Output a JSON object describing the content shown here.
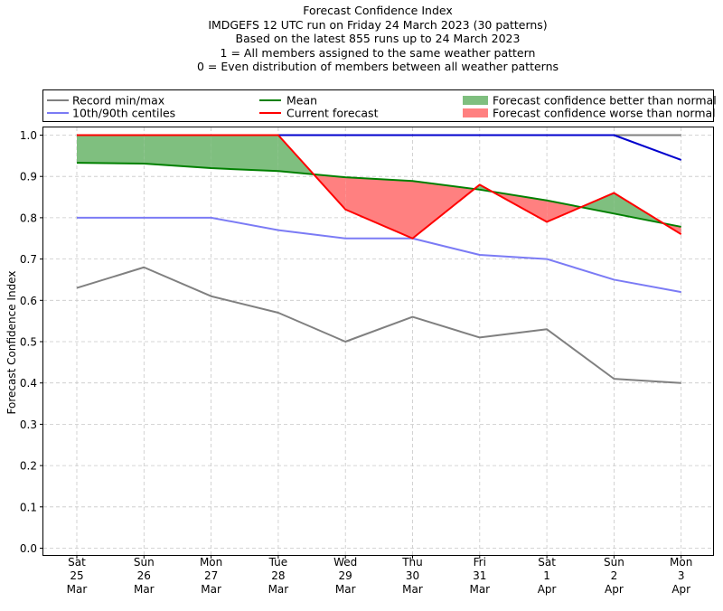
{
  "header": {
    "lines": [
      "Forecast Confidence Index",
      "IMDGEFS 12 UTC run on Friday 24 March 2023 (30 patterns)",
      "Based on the latest 855 runs up to 24 March 2023",
      "1 = All members assigned to the same weather pattern",
      "0 = Even distribution of members between all weather patterns"
    ]
  },
  "legend": {
    "record": "Record min/max",
    "centiles": "10th/90th centiles",
    "mean": "Mean",
    "current": "Current forecast",
    "better": "Forecast confidence better than normal",
    "worse": "Forecast confidence worse than normal"
  },
  "colors": {
    "record": "#808080",
    "centiles": "#7b7bf5",
    "max": "#0000cd",
    "mean": "#008000",
    "current": "#ff0000",
    "better": "#7fbf7f",
    "worse": "#ff8080"
  },
  "chart_data": {
    "type": "line",
    "title": "Forecast Confidence Index",
    "ylabel": "Forecast Confidence Index",
    "ylim": [
      0.0,
      1.0
    ],
    "yticks": [
      "0.0",
      "0.1",
      "0.2",
      "0.3",
      "0.4",
      "0.5",
      "0.6",
      "0.7",
      "0.8",
      "0.9",
      "1.0"
    ],
    "grid": true,
    "legend_position": "top",
    "categories": [
      [
        "Sat",
        "25",
        "Mar"
      ],
      [
        "Sun",
        "26",
        "Mar"
      ],
      [
        "Mon",
        "27",
        "Mar"
      ],
      [
        "Tue",
        "28",
        "Mar"
      ],
      [
        "Wed",
        "29",
        "Mar"
      ],
      [
        "Thu",
        "30",
        "Mar"
      ],
      [
        "Fri",
        "31",
        "Mar"
      ],
      [
        "Sat",
        "1",
        "Apr"
      ],
      [
        "Sun",
        "2",
        "Apr"
      ],
      [
        "Mon",
        "3",
        "Apr"
      ]
    ],
    "series": [
      {
        "name": "Record min/max",
        "key": "record_min",
        "values": [
          0.63,
          0.68,
          0.61,
          0.57,
          0.5,
          0.56,
          0.51,
          0.53,
          0.41,
          0.4
        ]
      },
      {
        "name": "Record min/max",
        "key": "record_max",
        "values": [
          1.0,
          1.0,
          1.0,
          1.0,
          1.0,
          1.0,
          1.0,
          1.0,
          1.0,
          1.0
        ]
      },
      {
        "name": "10th/90th centiles",
        "key": "p10",
        "values": [
          0.8,
          0.8,
          0.8,
          0.77,
          0.75,
          0.75,
          0.71,
          0.7,
          0.65,
          0.62
        ]
      },
      {
        "name": "10th/90th centiles",
        "key": "p90",
        "values": [
          1.0,
          1.0,
          1.0,
          1.0,
          1.0,
          1.0,
          1.0,
          1.0,
          1.0,
          0.94
        ]
      },
      {
        "name": "Mean",
        "key": "mean",
        "values": [
          0.933,
          0.931,
          0.92,
          0.913,
          0.898,
          0.889,
          0.868,
          0.842,
          0.81,
          0.778
        ]
      },
      {
        "name": "Current forecast",
        "key": "current",
        "values": [
          1.0,
          1.0,
          1.0,
          1.0,
          0.82,
          0.75,
          0.88,
          0.79,
          0.86,
          0.76
        ]
      }
    ]
  }
}
